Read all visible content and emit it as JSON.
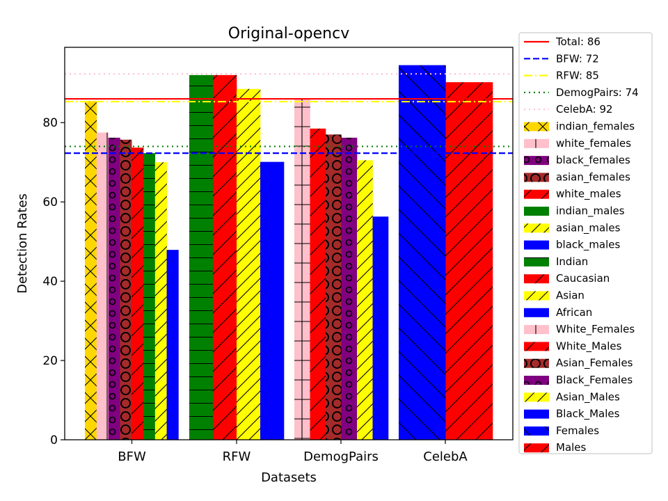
{
  "chart_data": {
    "type": "bar",
    "title": "Original-opencv",
    "xlabel": "Datasets",
    "ylabel": "Detection Rates",
    "categories": [
      "BFW",
      "RFW",
      "DemogPairs",
      "CelebA"
    ],
    "ylim": [
      0,
      99
    ],
    "yticks": [
      0,
      20,
      40,
      60,
      80
    ],
    "legend_position": "outside-right",
    "bars": [
      {
        "name": "indian_females",
        "category": "BFW",
        "slot": 0,
        "value": 85.5,
        "color": "#FFD700",
        "hatch": "x"
      },
      {
        "name": "white_females",
        "category": "BFW",
        "slot": 1,
        "value": 77.5,
        "color": "#FFC0CB",
        "hatch": "|"
      },
      {
        "name": "black_females",
        "category": "BFW",
        "slot": 2,
        "value": 76.2,
        "color": "#800080",
        "hatch": "o"
      },
      {
        "name": "asian_females",
        "category": "BFW",
        "slot": 3,
        "value": 75.7,
        "color": "#A52A2A",
        "hatch": "O"
      },
      {
        "name": "white_males",
        "category": "BFW",
        "slot": 4,
        "value": 73.7,
        "color": "#FF0000",
        "hatch": "/"
      },
      {
        "name": "indian_males",
        "category": "BFW",
        "slot": 5,
        "value": 72.3,
        "color": "#008000",
        "hatch": "-"
      },
      {
        "name": "asian_males",
        "category": "BFW",
        "slot": 6,
        "value": 70.0,
        "color": "#FFFF00",
        "hatch": "//"
      },
      {
        "name": "black_males",
        "category": "BFW",
        "slot": 7,
        "value": 47.9,
        "color": "#0000FF",
        "hatch": ""
      },
      {
        "name": "Indian",
        "category": "RFW",
        "slot": 0,
        "value": 92.0,
        "color": "#008000",
        "hatch": "-"
      },
      {
        "name": "Caucasian",
        "category": "RFW",
        "slot": 1,
        "value": 92.0,
        "color": "#FF0000",
        "hatch": "/"
      },
      {
        "name": "Asian",
        "category": "RFW",
        "slot": 2,
        "value": 88.5,
        "color": "#FFFF00",
        "hatch": "//"
      },
      {
        "name": "African",
        "category": "RFW",
        "slot": 3,
        "value": 70.1,
        "color": "#0000FF",
        "hatch": ""
      },
      {
        "name": "White_Females",
        "category": "DemogPairs",
        "slot": 0,
        "value": 86.0,
        "color": "#FFC0CB",
        "hatch": "+"
      },
      {
        "name": "White_Males",
        "category": "DemogPairs",
        "slot": 1,
        "value": 78.5,
        "color": "#FF0000",
        "hatch": "/"
      },
      {
        "name": "Asian_Females",
        "category": "DemogPairs",
        "slot": 2,
        "value": 77.0,
        "color": "#A52A2A",
        "hatch": "O"
      },
      {
        "name": "Black_Females",
        "category": "DemogPairs",
        "slot": 3,
        "value": 76.2,
        "color": "#800080",
        "hatch": "o"
      },
      {
        "name": "Asian_Males",
        "category": "DemogPairs",
        "slot": 4,
        "value": 70.5,
        "color": "#FFFF00",
        "hatch": "//"
      },
      {
        "name": "Black_Males",
        "category": "DemogPairs",
        "slot": 5,
        "value": 56.3,
        "color": "#0000FF",
        "hatch": ""
      },
      {
        "name": "Females",
        "category": "CelebA",
        "slot": 0,
        "value": 94.5,
        "color": "#0000FF",
        "hatch": "\\"
      },
      {
        "name": "Males",
        "category": "CelebA",
        "slot": 1,
        "value": 90.2,
        "color": "#FF0000",
        "hatch": "/"
      }
    ],
    "lines": [
      {
        "label": "Total: 86",
        "value": 86,
        "color": "#FF0000",
        "dash": "solid"
      },
      {
        "label": "BFW: 72",
        "value": 72.3,
        "color": "#0000FF",
        "dash": "dashed"
      },
      {
        "label": "RFW: 85",
        "value": 85.3,
        "color": "#FFFF00",
        "dash": "dashdot"
      },
      {
        "label": "DemogPairs: 74",
        "value": 74.0,
        "color": "#008000",
        "dash": "dotted"
      },
      {
        "label": "CelebA: 92",
        "value": 92.3,
        "color": "#FFC0CB",
        "dash": "dotted"
      }
    ]
  }
}
